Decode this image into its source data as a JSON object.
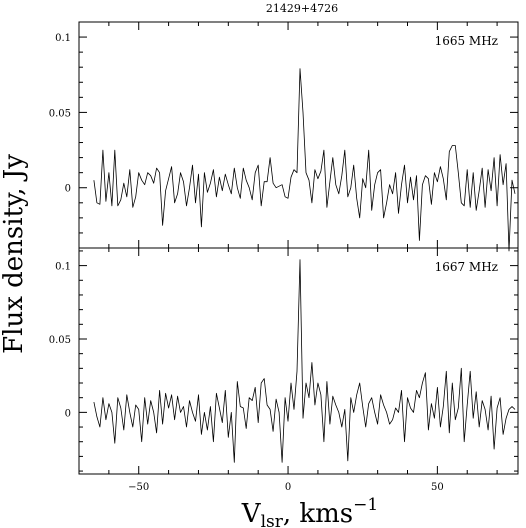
{
  "chart_data": {
    "type": "line",
    "title": "21429+4726",
    "ylabel": "Flux density, Jy",
    "xlabel_main": "V",
    "xlabel_sub": "lsr",
    "xlabel_rest": ", kms",
    "xlabel_sup": "−1",
    "xlim": [
      -70,
      77
    ],
    "x_ticks": [
      "−50",
      "0",
      "50"
    ],
    "x_tick_values": [
      -50,
      0,
      50
    ],
    "panels": [
      {
        "name": "1665 MHz",
        "ylim": [
          -0.04,
          0.11
        ],
        "y_ticks": [
          "0.1",
          "0.05",
          "0"
        ],
        "y_tick_values": [
          0.1,
          0.05,
          0
        ],
        "x_start": -65,
        "x_step": 1,
        "values": [
          0.005,
          -0.01,
          -0.011,
          0.025,
          -0.009,
          0.01,
          -0.012,
          0.025,
          -0.012,
          -0.008,
          0.003,
          -0.006,
          0.012,
          -0.013,
          -0.006,
          0.01,
          0.005,
          0.002,
          0.01,
          0.008,
          0.003,
          0.013,
          0.01,
          -0.025,
          -0.002,
          0.006,
          0.014,
          -0.01,
          -0.004,
          0.01,
          0.004,
          -0.012,
          0.0,
          0.015,
          -0.01,
          0.009,
          -0.026,
          0.01,
          -0.003,
          0.003,
          0.012,
          -0.006,
          0.007,
          -0.002,
          0.009,
          0.002,
          -0.004,
          0.013,
          0.0,
          -0.007,
          0.013,
          0.005,
          0.0,
          -0.008,
          0.01,
          0.015,
          -0.012,
          0.004,
          0.004,
          0.02,
          0.003,
          0.0,
          0.001,
          0.002,
          -0.006,
          -0.007,
          0.007,
          0.012,
          0.01,
          0.079,
          0.05,
          0.01,
          0.005,
          -0.01,
          0.012,
          0.006,
          0.011,
          0.025,
          -0.013,
          0.004,
          0.02,
          0.002,
          -0.004,
          0.008,
          0.025,
          -0.006,
          0.0,
          0.015,
          -0.007,
          -0.02,
          0.006,
          0.0,
          0.025,
          -0.015,
          0.002,
          0.01,
          0.012,
          -0.02,
          -0.01,
          0.002,
          -0.004,
          0.01,
          -0.017,
          0.002,
          0.015,
          -0.01,
          0.007,
          -0.008,
          0.008,
          -0.035,
          0.002,
          0.008,
          0.006,
          -0.011,
          0.01,
          0.004,
          0.014,
          0.006,
          -0.008,
          0.024,
          0.028,
          0.028,
          0.01,
          -0.01,
          -0.012,
          0.012,
          -0.013,
          0.01,
          -0.015,
          -0.002,
          0.013,
          -0.013,
          0.012,
          -0.002,
          0.02,
          -0.012,
          0.022,
          0.002,
          0.016,
          -0.042,
          0.005,
          -0.004
        ]
      },
      {
        "name": "1667 MHz",
        "ylim": [
          -0.042,
          0.112
        ],
        "y_ticks": [
          "0.1",
          "0.05",
          "0"
        ],
        "y_tick_values": [
          0.1,
          0.05,
          0
        ],
        "x_start": -65,
        "x_step": 1,
        "values": [
          0.007,
          -0.003,
          -0.01,
          0.01,
          -0.005,
          0.006,
          0.0,
          -0.021,
          0.01,
          0.003,
          -0.012,
          0.012,
          0.0,
          -0.01,
          0.005,
          0.002,
          -0.02,
          0.01,
          -0.008,
          0.008,
          0.0,
          -0.014,
          0.015,
          -0.008,
          0.013,
          0.003,
          0.012,
          -0.005,
          0.011,
          0.0,
          0.004,
          -0.01,
          0.008,
          0.0,
          -0.006,
          0.012,
          -0.015,
          0.0,
          -0.012,
          0.004,
          -0.02,
          0.013,
          0.003,
          -0.007,
          0.015,
          -0.017,
          0.0,
          -0.034,
          0.021,
          0.004,
          0.003,
          -0.011,
          0.01,
          0.008,
          0.017,
          -0.007,
          0.02,
          0.023,
          0.005,
          0.002,
          -0.013,
          0.009,
          0.0,
          -0.034,
          0.01,
          -0.006,
          0.02,
          0.002,
          0.028,
          0.104,
          -0.004,
          0.02,
          0.01,
          0.034,
          0.005,
          0.02,
          0.012,
          -0.02,
          0.021,
          -0.008,
          0.011,
          0.005,
          0.0,
          -0.01,
          0.002,
          -0.033,
          0.01,
          0.0,
          0.012,
          0.02,
          0.004,
          -0.01,
          0.006,
          0.01,
          0.0,
          -0.008,
          0.012,
          0.005,
          0.0,
          -0.008,
          -0.005,
          0.003,
          0.0,
          0.015,
          -0.02,
          0.01,
          0.003,
          0.0,
          0.015,
          0.01,
          0.02,
          0.027,
          -0.012,
          0.006,
          -0.004,
          0.017,
          -0.01,
          0.004,
          0.028,
          -0.014,
          0.02,
          -0.005,
          0.003,
          0.03,
          -0.02,
          0.005,
          0.028,
          -0.004,
          0.014,
          -0.01,
          0.008,
          0.002,
          -0.012,
          0.011,
          -0.025,
          0.003,
          0.01,
          -0.015,
          -0.004,
          0.002,
          0.004,
          0.002
        ]
      }
    ]
  }
}
